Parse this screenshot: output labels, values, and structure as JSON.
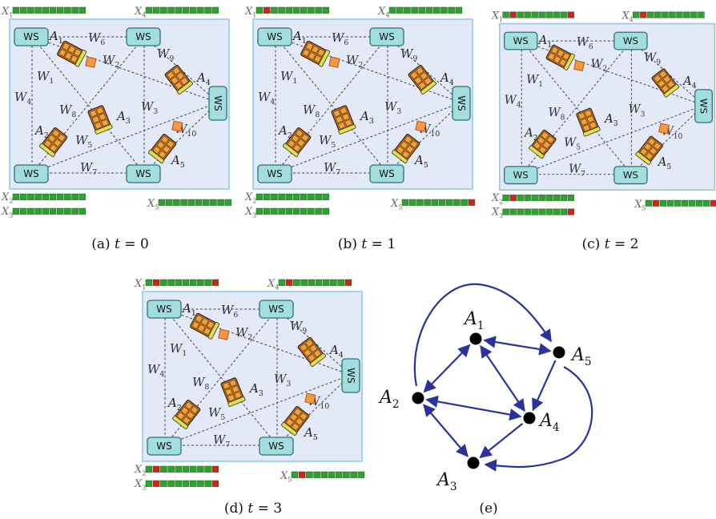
{
  "colors": {
    "panel_fill": "#e3e9f7",
    "panel_border": "#86cbe4",
    "ws_fill": "#a3dede",
    "ws_border": "#2f6f7a",
    "edge": "#444444",
    "graph_edge": "#29339b",
    "cell_green": "#2ea12e",
    "cell_red": "#d42020",
    "box_orange": "#f59a3c"
  },
  "ws_label": "WS",
  "panels": [
    {
      "id": "a",
      "caption_prefix": "(a)",
      "t_var": "t",
      "t_eq": "=",
      "t_value": "0",
      "queues": {
        "X1": [],
        "X2": [],
        "X3": [],
        "X4": [],
        "X5": []
      }
    },
    {
      "id": "b",
      "caption_prefix": "(b)",
      "t_var": "t",
      "t_eq": "=",
      "t_value": "1",
      "queues": {
        "X1": [
          1
        ],
        "X2": [],
        "X3": [],
        "X4": [],
        "X5": [
          9
        ]
      }
    },
    {
      "id": "c",
      "caption_prefix": "(c)",
      "t_var": "t",
      "t_eq": "=",
      "t_value": "2",
      "queues": {
        "X1": [
          1,
          9
        ],
        "X2": [
          1
        ],
        "X3": [
          9
        ],
        "X4": [
          1
        ],
        "X5": [
          1,
          9
        ]
      }
    },
    {
      "id": "d",
      "caption_prefix": "(d)",
      "t_var": "t",
      "t_eq": "=",
      "t_value": "3",
      "queues": {
        "X1": [
          1,
          9
        ],
        "X2": [
          1,
          9
        ],
        "X3": [
          1,
          9
        ],
        "X4": [
          1,
          9
        ],
        "X5": [
          1
        ]
      }
    }
  ],
  "labels": {
    "X1": "X",
    "X1_sub": "1",
    "X2": "X",
    "X2_sub": "2",
    "X3": "X",
    "X3_sub": "3",
    "X4": "X",
    "X4_sub": "4",
    "X5": "X",
    "X5_sub": "5",
    "W": "W",
    "A": "A"
  },
  "edge_labels": [
    "1",
    "2",
    "3",
    "4",
    "5",
    "6",
    "7",
    "8",
    "9",
    "10"
  ],
  "agent_labels": [
    "1",
    "2",
    "3",
    "4",
    "5"
  ],
  "graph": {
    "caption": "(e)",
    "nodes": [
      {
        "name": "A",
        "sub": "1",
        "value": 1
      },
      {
        "name": "A",
        "sub": "2",
        "value": 2
      },
      {
        "name": "A",
        "sub": "3",
        "value": 3
      },
      {
        "name": "A",
        "sub": "4",
        "value": 4
      },
      {
        "name": "A",
        "sub": "5",
        "value": 5
      }
    ],
    "edges": [
      [
        1,
        2
      ],
      [
        1,
        4
      ],
      [
        1,
        5
      ],
      [
        2,
        4
      ],
      [
        2,
        3
      ],
      [
        4,
        3
      ],
      [
        5,
        4
      ],
      [
        2,
        5
      ],
      [
        5,
        3
      ]
    ]
  }
}
